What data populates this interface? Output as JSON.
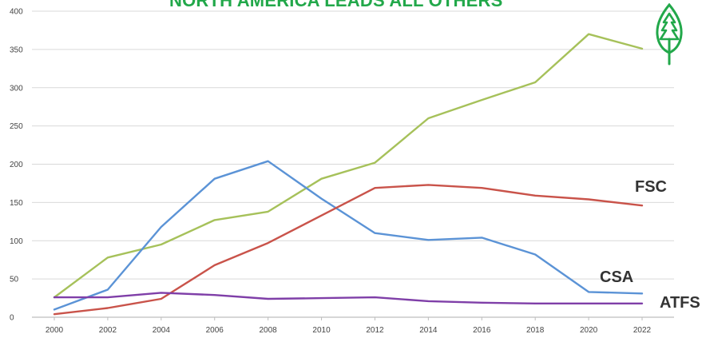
{
  "title": "NORTH AMERICA LEADS ALL OTHERS",
  "logo": {
    "icon": "tree-leaf-logo-icon",
    "color": "#22a84a"
  },
  "series_labels": {
    "fsc": "FSC",
    "csa": "CSA",
    "atfs": "ATFS"
  },
  "chart_data": {
    "type": "line",
    "title": "NORTH AMERICA LEADS ALL OTHERS",
    "xlabel": "",
    "ylabel": "",
    "x": [
      2000,
      2002,
      2004,
      2006,
      2008,
      2010,
      2012,
      2014,
      2016,
      2018,
      2020,
      2022
    ],
    "x_tick_labels": [
      "2000",
      "2002",
      "2004",
      "2006",
      "2008",
      "2010",
      "2012",
      "2014",
      "2016",
      "2018",
      "2020",
      "2022"
    ],
    "y_tick_labels": [
      "0",
      "50",
      "100",
      "150",
      "200",
      "250",
      "300",
      "350",
      "400"
    ],
    "y_ticks": [
      0,
      50,
      100,
      150,
      200,
      250,
      300,
      350,
      400
    ],
    "xlim": [
      2000,
      2022
    ],
    "ylim": [
      0,
      400
    ],
    "grid": "horizontal",
    "series": [
      {
        "key": "green",
        "color": "#a6c15a",
        "values": [
          26,
          78,
          95,
          127,
          138,
          181,
          202,
          260,
          284,
          307,
          370,
          351
        ]
      },
      {
        "key": "blue",
        "color": "#5b93d6",
        "values": [
          10,
          36,
          118,
          181,
          204,
          155,
          110,
          101,
          104,
          82,
          33,
          31
        ]
      },
      {
        "name": "FSC",
        "key": "red",
        "color": "#c9534a",
        "values": [
          4,
          12,
          24,
          68,
          97,
          133,
          169,
          173,
          169,
          159,
          154,
          146
        ]
      },
      {
        "name": "ATFS",
        "key": "purple",
        "color": "#7f3fa8",
        "values": [
          26,
          26,
          32,
          29,
          24,
          25,
          26,
          21,
          19,
          18,
          18,
          18
        ]
      }
    ]
  }
}
